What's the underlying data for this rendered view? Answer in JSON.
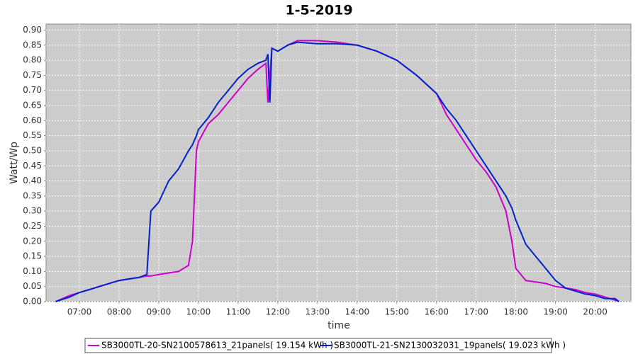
{
  "chart_data": {
    "type": "line",
    "title": "1-5-2019",
    "x_label": "time",
    "y_label": "Watt/Wp",
    "x": [
      6.4,
      6.75,
      7,
      7.25,
      7.5,
      7.75,
      8,
      8.25,
      8.5,
      8.7,
      8.8,
      9,
      9.25,
      9.5,
      9.75,
      9.85,
      9.95,
      10,
      10.25,
      10.5,
      10.75,
      11,
      11.25,
      11.5,
      11.7,
      11.75,
      11.8,
      11.85,
      12,
      12.25,
      12.5,
      13,
      13.5,
      14,
      14.5,
      15,
      15.5,
      16,
      16.25,
      16.5,
      16.75,
      17,
      17.25,
      17.5,
      17.75,
      17.9,
      18,
      18.25,
      18.5,
      18.75,
      19,
      19.25,
      19.5,
      19.75,
      20,
      20.25,
      20.5,
      20.6
    ],
    "series": [
      {
        "name": "SB3000TL-20-SN2100578613_21panels( 19.154 kWh )",
        "color": "#cc00cc",
        "values": [
          0,
          0.02,
          0.03,
          0.04,
          0.05,
          0.06,
          0.07,
          0.075,
          0.08,
          0.085,
          0.085,
          0.09,
          0.095,
          0.1,
          0.12,
          0.2,
          0.5,
          0.53,
          0.59,
          0.62,
          0.66,
          0.7,
          0.74,
          0.77,
          0.79,
          0.66,
          0.75,
          0.84,
          0.83,
          0.85,
          0.865,
          0.865,
          0.86,
          0.85,
          0.83,
          0.8,
          0.75,
          0.69,
          0.62,
          0.57,
          0.52,
          0.47,
          0.43,
          0.38,
          0.3,
          0.2,
          0.11,
          0.07,
          0.065,
          0.06,
          0.05,
          0.045,
          0.04,
          0.03,
          0.025,
          0.015,
          0.005,
          0
        ]
      },
      {
        "name": "SB3000TL-21-SN2130032031_19panels( 19.023 kWh )",
        "color": "#0022cc",
        "values": [
          0,
          0.015,
          0.03,
          0.04,
          0.05,
          0.06,
          0.07,
          0.075,
          0.08,
          0.09,
          0.3,
          0.33,
          0.4,
          0.44,
          0.5,
          0.52,
          0.55,
          0.57,
          0.61,
          0.66,
          0.7,
          0.74,
          0.77,
          0.79,
          0.8,
          0.82,
          0.66,
          0.84,
          0.83,
          0.85,
          0.86,
          0.855,
          0.855,
          0.85,
          0.83,
          0.8,
          0.75,
          0.69,
          0.64,
          0.6,
          0.55,
          0.5,
          0.45,
          0.4,
          0.35,
          0.31,
          0.27,
          0.19,
          0.15,
          0.11,
          0.07,
          0.045,
          0.035,
          0.025,
          0.02,
          0.01,
          0.01,
          0
        ]
      }
    ],
    "xlim": [
      6.16,
      20.9
    ],
    "xticks": [
      {
        "value": 7,
        "label": "07:00"
      },
      {
        "value": 8,
        "label": "08:00"
      },
      {
        "value": 9,
        "label": "09:00"
      },
      {
        "value": 10,
        "label": "10:00"
      },
      {
        "value": 11,
        "label": "11:00"
      },
      {
        "value": 12,
        "label": "12:00"
      },
      {
        "value": 13,
        "label": "13:00"
      },
      {
        "value": 14,
        "label": "14:00"
      },
      {
        "value": 15,
        "label": "15:00"
      },
      {
        "value": 16,
        "label": "16:00"
      },
      {
        "value": 17,
        "label": "17:00"
      },
      {
        "value": 18,
        "label": "18:00"
      },
      {
        "value": 19,
        "label": "19:00"
      },
      {
        "value": 20,
        "label": "20:00"
      }
    ],
    "ylim": [
      0,
      0.92
    ],
    "yticks": [
      {
        "value": 0,
        "label": "0.00"
      },
      0.05,
      {
        "value": 0.1,
        "label": "0.10"
      },
      0.15,
      {
        "value": 0.2,
        "label": "0.20"
      },
      0.25,
      {
        "value": 0.3,
        "label": "0.30"
      },
      0.35,
      {
        "value": 0.4,
        "label": "0.40"
      },
      0.45,
      {
        "value": 0.5,
        "label": "0.50"
      },
      0.55,
      {
        "value": 0.6,
        "label": "0.60"
      },
      0.65,
      {
        "value": 0.7,
        "label": "0.70"
      },
      0.75,
      {
        "value": 0.8,
        "label": "0.80"
      },
      0.85,
      {
        "value": 0.9,
        "label": "0.90"
      }
    ],
    "grid": true
  }
}
